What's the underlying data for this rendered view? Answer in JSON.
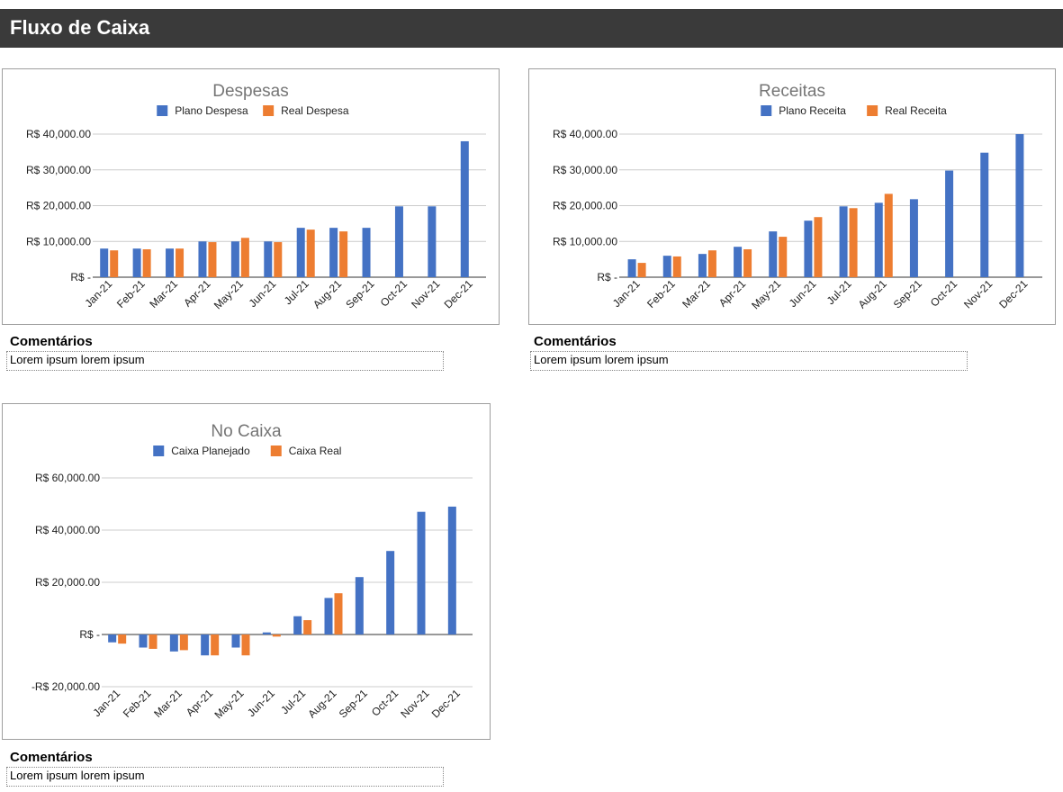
{
  "header": {
    "title": "Fluxo de Caixa"
  },
  "colors": {
    "plan": "#4472c4",
    "real": "#ed7d31",
    "header_bg": "#3a3a3a"
  },
  "comments": {
    "despesas": {
      "label": "Comentários",
      "value": "Lorem ipsum lorem ipsum"
    },
    "receitas": {
      "label": "Comentários",
      "value": "Lorem ipsum lorem ipsum"
    },
    "caixa": {
      "label": "Comentários",
      "value": "Lorem ipsum lorem ipsum"
    }
  },
  "chart_data": [
    {
      "type": "bar",
      "title": "Despesas",
      "categories": [
        "Jan-21",
        "Feb-21",
        "Mar-21",
        "Apr-21",
        "May-21",
        "Jun-21",
        "Jul-21",
        "Aug-21",
        "Sep-21",
        "Oct-21",
        "Nov-21",
        "Dec-21"
      ],
      "series": [
        {
          "name": "Plano Despesa",
          "values": [
            8000,
            8000,
            8000,
            10000,
            10000,
            10000,
            13800,
            13800,
            13800,
            19800,
            19800,
            38000
          ]
        },
        {
          "name": "Real Despesa",
          "values": [
            7500,
            7800,
            8000,
            9800,
            11000,
            9800,
            13300,
            12800,
            null,
            null,
            null,
            null
          ]
        }
      ],
      "ylim": [
        0,
        40000
      ],
      "yticks": [
        0,
        10000,
        20000,
        30000,
        40000
      ],
      "ytick_labels": [
        "R$ -",
        "R$ 10,000.00",
        "R$ 20,000.00",
        "R$ 30,000.00",
        "R$ 40,000.00"
      ],
      "legend_position": "top",
      "grid": true
    },
    {
      "type": "bar",
      "title": "Receitas",
      "categories": [
        "Jan-21",
        "Feb-21",
        "Mar-21",
        "Apr-21",
        "May-21",
        "Jun-21",
        "Jul-21",
        "Aug-21",
        "Sep-21",
        "Oct-21",
        "Nov-21",
        "Dec-21"
      ],
      "series": [
        {
          "name": "Plano Receita",
          "values": [
            5000,
            6000,
            6500,
            8500,
            12800,
            15800,
            19800,
            20800,
            21800,
            29800,
            34800,
            40000
          ]
        },
        {
          "name": "Real Receita",
          "values": [
            4000,
            5800,
            7500,
            7800,
            11300,
            16800,
            19300,
            23300,
            null,
            null,
            null,
            null
          ]
        }
      ],
      "ylim": [
        0,
        40000
      ],
      "yticks": [
        0,
        10000,
        20000,
        30000,
        40000
      ],
      "ytick_labels": [
        "R$ -",
        "R$ 10,000.00",
        "R$ 20,000.00",
        "R$ 30,000.00",
        "R$ 40,000.00"
      ],
      "legend_position": "top",
      "grid": true
    },
    {
      "type": "bar",
      "title": "No Caixa",
      "categories": [
        "Jan-21",
        "Feb-21",
        "Mar-21",
        "Apr-21",
        "May-21",
        "Jun-21",
        "Jul-21",
        "Aug-21",
        "Sep-21",
        "Oct-21",
        "Nov-21",
        "Dec-21"
      ],
      "series": [
        {
          "name": "Caixa Planejado",
          "values": [
            -3000,
            -5000,
            -6500,
            -8000,
            -5000,
            800,
            7000,
            14000,
            22000,
            32000,
            47000,
            49000
          ]
        },
        {
          "name": "Caixa Real",
          "values": [
            -3500,
            -5500,
            -6000,
            -8000,
            -8000,
            -800,
            5500,
            15800,
            null,
            null,
            null,
            null
          ]
        }
      ],
      "ylim": [
        -20000,
        60000
      ],
      "yticks": [
        -20000,
        0,
        20000,
        40000,
        60000
      ],
      "ytick_labels": [
        "-R$ 20,000.00",
        "R$ -",
        "R$ 20,000.00",
        "R$ 40,000.00",
        "R$ 60,000.00"
      ],
      "legend_position": "top",
      "grid": true
    }
  ]
}
